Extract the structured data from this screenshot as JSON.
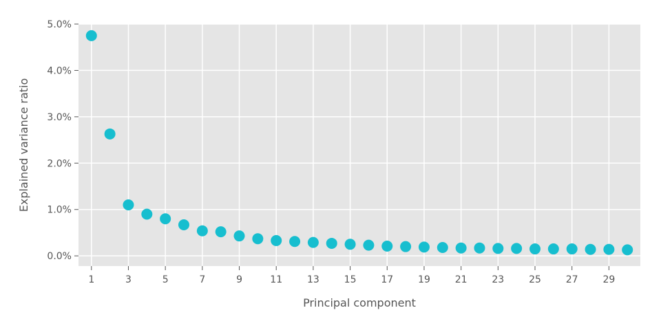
{
  "chart_data": {
    "type": "scatter",
    "xlabel": "Principal component",
    "ylabel": "Explained variance ratio",
    "xlim": [
      0.3,
      30.7
    ],
    "ylim": [
      -0.0022,
      0.05
    ],
    "x_ticks": [
      1,
      3,
      5,
      7,
      9,
      11,
      13,
      15,
      17,
      19,
      21,
      23,
      25,
      27,
      29
    ],
    "x_tick_labels": [
      "1",
      "3",
      "5",
      "7",
      "9",
      "11",
      "13",
      "15",
      "17",
      "19",
      "21",
      "23",
      "25",
      "27",
      "29"
    ],
    "y_ticks": [
      0,
      0.01,
      0.02,
      0.03,
      0.04,
      0.05
    ],
    "y_tick_labels": [
      "0.0%",
      "1.0%",
      "2.0%",
      "3.0%",
      "4.0%",
      "5.0%"
    ],
    "grid": true,
    "marker_color": "#17becf",
    "background_color": "#e5e5e5",
    "grid_color": "#ffffff",
    "x": [
      1,
      2,
      3,
      4,
      5,
      6,
      7,
      8,
      9,
      10,
      11,
      12,
      13,
      14,
      15,
      16,
      17,
      18,
      19,
      20,
      21,
      22,
      23,
      24,
      25,
      26,
      27,
      28,
      29,
      30
    ],
    "values": [
      0.0475,
      0.0263,
      0.011,
      0.009,
      0.008,
      0.0067,
      0.0054,
      0.0052,
      0.0043,
      0.0037,
      0.0033,
      0.0031,
      0.0029,
      0.0027,
      0.0025,
      0.0023,
      0.0021,
      0.002,
      0.0019,
      0.0018,
      0.0017,
      0.0017,
      0.0016,
      0.0016,
      0.0015,
      0.0015,
      0.0015,
      0.0014,
      0.0014,
      0.0013
    ]
  }
}
